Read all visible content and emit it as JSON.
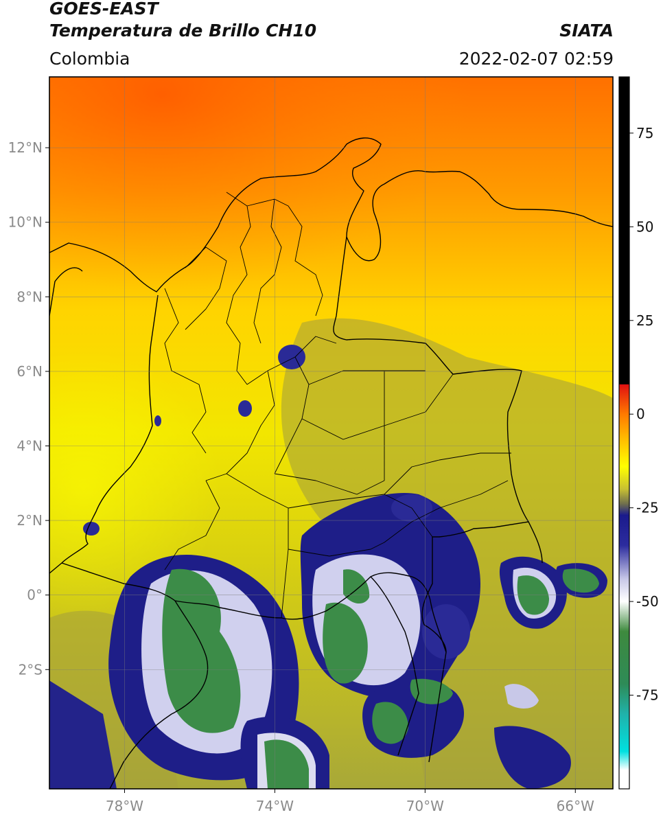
{
  "header": {
    "satellite": "GOES-EAST",
    "product": "Temperatura de Brillo CH10",
    "region": "Colombia",
    "agency": "SIATA",
    "datetime": "2022-02-07 02:59"
  },
  "map": {
    "lon_range": [
      -80,
      -65
    ],
    "lat_range": [
      -5.2,
      13.9
    ],
    "lon_ticks": [
      {
        "value": -78,
        "label": "78°W"
      },
      {
        "value": -74,
        "label": "74°W"
      },
      {
        "value": -70,
        "label": "70°W"
      },
      {
        "value": -66,
        "label": "66°W"
      }
    ],
    "lat_ticks": [
      {
        "value": 12,
        "label": "12°N"
      },
      {
        "value": 10,
        "label": "10°N"
      },
      {
        "value": 8,
        "label": "8°N"
      },
      {
        "value": 6,
        "label": "6°N"
      },
      {
        "value": 4,
        "label": "4°N"
      },
      {
        "value": 2,
        "label": "2°N"
      },
      {
        "value": 0,
        "label": "0°"
      },
      {
        "value": -2,
        "label": "2°S"
      }
    ],
    "grid": true
  },
  "colorbar": {
    "range": [
      -100,
      90
    ],
    "ticks": [
      {
        "value": 75,
        "label": "75"
      },
      {
        "value": 50,
        "label": "50"
      },
      {
        "value": 25,
        "label": "25"
      },
      {
        "value": 0,
        "label": "0"
      },
      {
        "value": -25,
        "label": "-25"
      },
      {
        "value": -50,
        "label": "-50"
      },
      {
        "value": -75,
        "label": "-75"
      }
    ],
    "stops": [
      {
        "value": 90,
        "color": "#000000"
      },
      {
        "value": 8,
        "color": "#000000"
      },
      {
        "value": 7.9,
        "color": "#e01010"
      },
      {
        "value": 0,
        "color": "#ff7a00"
      },
      {
        "value": -7,
        "color": "#ffc000"
      },
      {
        "value": -14,
        "color": "#ffff00"
      },
      {
        "value": -20,
        "color": "#c8c032"
      },
      {
        "value": -24,
        "color": "#6e6e4e"
      },
      {
        "value": -27,
        "color": "#1a1a8c"
      },
      {
        "value": -35,
        "color": "#2c2c9e"
      },
      {
        "value": -44,
        "color": "#c8c8e8"
      },
      {
        "value": -50,
        "color": "#ffffff"
      },
      {
        "value": -58,
        "color": "#3e8a3e"
      },
      {
        "value": -72,
        "color": "#2e8b57"
      },
      {
        "value": -80,
        "color": "#20b2aa"
      },
      {
        "value": -90,
        "color": "#00e0e0"
      },
      {
        "value": -95,
        "color": "#ffffff"
      },
      {
        "value": -100,
        "color": "#ffffff"
      }
    ]
  }
}
